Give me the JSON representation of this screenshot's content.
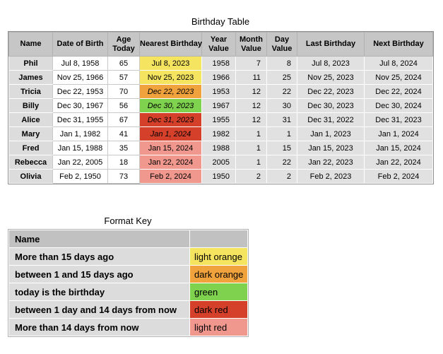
{
  "birthday_table": {
    "title": "Birthday Table",
    "columns": [
      "Name",
      "Date of Birth",
      "Age\nToday",
      "Nearest Birthday",
      "Year\nValue",
      "Month\nValue",
      "Day\nValue",
      "Last Birthday",
      "Next Birthday"
    ],
    "rows": [
      {
        "name": "Phil",
        "dob": "Jul 8, 1958",
        "age": "65",
        "nearest": "Jul 8, 2023",
        "nearest_color": "light_orange",
        "nearest_italic": false,
        "year": "1958",
        "month": "7",
        "day": "8",
        "last": "Jul 8, 2023",
        "next": "Jul 8, 2024"
      },
      {
        "name": "James",
        "dob": "Nov 25, 1966",
        "age": "57",
        "nearest": "Nov 25, 2023",
        "nearest_color": "light_orange",
        "nearest_italic": false,
        "year": "1966",
        "month": "11",
        "day": "25",
        "last": "Nov 25, 2023",
        "next": "Nov 25, 2024"
      },
      {
        "name": "Tricia",
        "dob": "Dec 22, 1953",
        "age": "70",
        "nearest": "Dec 22, 2023",
        "nearest_color": "dark_orange",
        "nearest_italic": true,
        "year": "1953",
        "month": "12",
        "day": "22",
        "last": "Dec 22, 2023",
        "next": "Dec 22, 2024"
      },
      {
        "name": "Billy",
        "dob": "Dec 30, 1967",
        "age": "56",
        "nearest": "Dec 30, 2023",
        "nearest_color": "green",
        "nearest_italic": true,
        "year": "1967",
        "month": "12",
        "day": "30",
        "last": "Dec 30, 2023",
        "next": "Dec 30, 2024"
      },
      {
        "name": "Alice",
        "dob": "Dec 31, 1955",
        "age": "67",
        "nearest": "Dec 31, 2023",
        "nearest_color": "dark_red",
        "nearest_italic": true,
        "year": "1955",
        "month": "12",
        "day": "31",
        "last": "Dec 31, 2022",
        "next": "Dec 31, 2023"
      },
      {
        "name": "Mary",
        "dob": "Jan 1, 1982",
        "age": "41",
        "nearest": "Jan 1, 2024",
        "nearest_color": "dark_red",
        "nearest_italic": true,
        "year": "1982",
        "month": "1",
        "day": "1",
        "last": "Jan 1, 2023",
        "next": "Jan 1, 2024"
      },
      {
        "name": "Fred",
        "dob": "Jan 15, 1988",
        "age": "35",
        "nearest": "Jan 15, 2024",
        "nearest_color": "light_red",
        "nearest_italic": false,
        "year": "1988",
        "month": "1",
        "day": "15",
        "last": "Jan 15, 2023",
        "next": "Jan 15, 2024"
      },
      {
        "name": "Rebecca",
        "dob": "Jan 22, 2005",
        "age": "18",
        "nearest": "Jan 22, 2024",
        "nearest_color": "light_red",
        "nearest_italic": false,
        "year": "2005",
        "month": "1",
        "day": "22",
        "last": "Jan 22, 2023",
        "next": "Jan 22, 2024"
      },
      {
        "name": "Olivia",
        "dob": "Feb 2, 1950",
        "age": "73",
        "nearest": "Feb 2, 2024",
        "nearest_color": "light_red",
        "nearest_italic": false,
        "year": "1950",
        "month": "2",
        "day": "2",
        "last": "Feb 2, 2023",
        "next": "Feb 2, 2024"
      }
    ]
  },
  "format_key": {
    "title": "Format Key",
    "header": "Name",
    "rows": [
      {
        "label": "More than 15 days ago",
        "color_name": "light orange",
        "color_key": "light_orange"
      },
      {
        "label": "between 1 and 15 days ago",
        "color_name": "dark orange",
        "color_key": "dark_orange"
      },
      {
        "label": "today is the birthday",
        "color_name": "green",
        "color_key": "green"
      },
      {
        "label": "between 1 day and 14 days from now",
        "color_name": "dark red",
        "color_key": "dark_red"
      },
      {
        "label": "More than 14 days from now",
        "color_name": "light red",
        "color_key": "light_red"
      }
    ]
  },
  "colors": {
    "light_orange": "#f5e45f",
    "dark_orange": "#f0a33c",
    "green": "#7ed24d",
    "dark_red": "#d5402a",
    "light_red": "#f0988e"
  }
}
